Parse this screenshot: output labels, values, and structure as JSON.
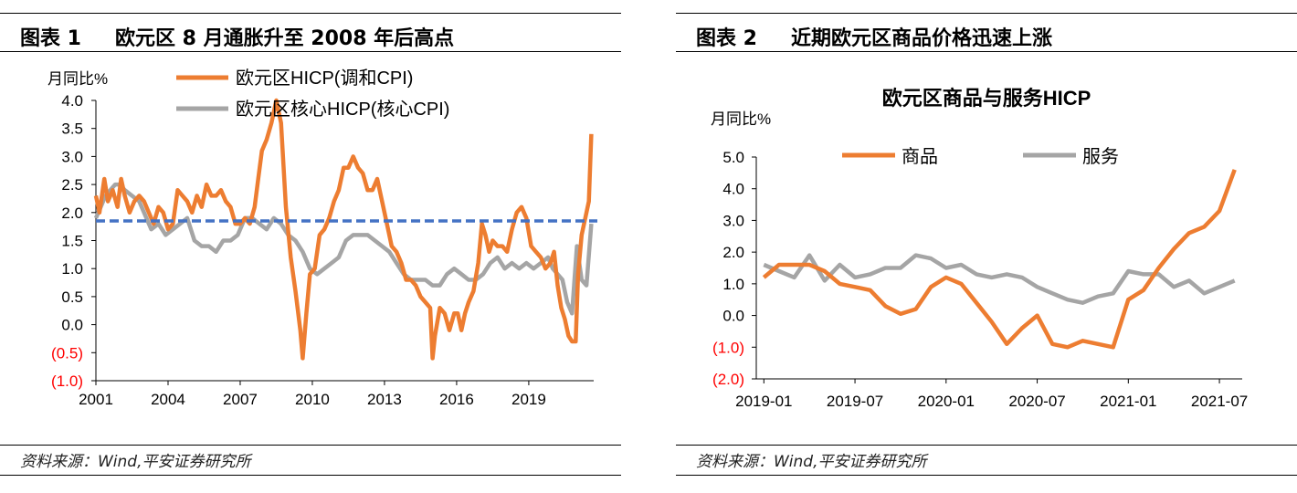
{
  "panels": [
    {
      "fig_num": "图表 1",
      "heading": "欧元区 8 月通胀升至 2008 年后高点",
      "source": "资料来源：Wind,平安证券研究所"
    },
    {
      "fig_num": "图表 2",
      "heading": "近期欧元区商品价格迅速上涨",
      "source": "资料来源：Wind,平安证券研究所"
    }
  ],
  "colors": {
    "orange": "#ED7D31",
    "gray": "#A5A5A5",
    "blue_dash": "#4472C4",
    "negative_label": "#FF0000"
  },
  "chart_data": [
    {
      "type": "line",
      "ylabel": "月同比%",
      "ylim": [
        -1.0,
        4.0
      ],
      "yticks": [
        4.0,
        3.5,
        3.0,
        2.5,
        2.0,
        1.5,
        1.0,
        0.5,
        0.0,
        -0.5,
        -1.0
      ],
      "ytick_labels": [
        "4.0",
        "3.5",
        "3.0",
        "2.5",
        "2.0",
        "1.5",
        "1.0",
        "0.5",
        "0.0",
        "(0.5)",
        "(1.0)"
      ],
      "xlim": [
        2001.0,
        2021.7
      ],
      "xticks": [
        2001,
        2004,
        2007,
        2010,
        2013,
        2016,
        2019
      ],
      "xtick_labels": [
        "2001",
        "2004",
        "2007",
        "2010",
        "2013",
        "2016",
        "2019"
      ],
      "reference_line": 1.85,
      "legend_position": "top",
      "series": [
        {
          "name": "欧元区HICP(调和CPI)",
          "color": "orange",
          "x": [
            2001.0,
            2001.15,
            2001.35,
            2001.5,
            2001.7,
            2001.9,
            2002.05,
            2002.2,
            2002.4,
            2002.6,
            2002.8,
            2003.0,
            2003.2,
            2003.4,
            2003.6,
            2003.8,
            2004.0,
            2004.2,
            2004.4,
            2004.6,
            2004.8,
            2005.0,
            2005.2,
            2005.4,
            2005.6,
            2005.8,
            2006.0,
            2006.2,
            2006.4,
            2006.6,
            2006.8,
            2007.0,
            2007.2,
            2007.4,
            2007.6,
            2007.75,
            2007.9,
            2008.1,
            2008.3,
            2008.5,
            2008.7,
            2008.9,
            2009.1,
            2009.3,
            2009.5,
            2009.6,
            2009.75,
            2009.9,
            2010.1,
            2010.3,
            2010.5,
            2010.7,
            2010.9,
            2011.1,
            2011.3,
            2011.5,
            2011.7,
            2011.9,
            2012.1,
            2012.3,
            2012.5,
            2012.7,
            2012.9,
            2013.1,
            2013.3,
            2013.5,
            2013.7,
            2013.9,
            2014.1,
            2014.3,
            2014.5,
            2014.7,
            2014.9,
            2015.0,
            2015.1,
            2015.3,
            2015.5,
            2015.7,
            2015.9,
            2016.05,
            2016.2,
            2016.35,
            2016.5,
            2016.7,
            2016.9,
            2017.05,
            2017.2,
            2017.35,
            2017.5,
            2017.7,
            2017.9,
            2018.1,
            2018.3,
            2018.5,
            2018.7,
            2018.9,
            2019.1,
            2019.3,
            2019.5,
            2019.7,
            2019.9,
            2020.05,
            2020.2,
            2020.35,
            2020.5,
            2020.65,
            2020.8,
            2020.95,
            2021.05,
            2021.2,
            2021.35,
            2021.5,
            2021.6
          ],
          "y": [
            2.3,
            2.0,
            2.6,
            2.2,
            2.4,
            2.1,
            2.6,
            2.3,
            2.0,
            2.2,
            2.3,
            2.2,
            2.0,
            1.8,
            2.1,
            2.0,
            1.7,
            1.8,
            2.4,
            2.3,
            2.2,
            2.0,
            2.3,
            2.1,
            2.5,
            2.3,
            2.3,
            2.4,
            2.2,
            2.1,
            1.8,
            1.8,
            1.9,
            1.8,
            2.1,
            2.6,
            3.1,
            3.3,
            3.6,
            4.0,
            3.6,
            2.1,
            1.2,
            0.6,
            -0.1,
            -0.6,
            0.2,
            0.9,
            1.0,
            1.6,
            1.7,
            1.9,
            2.2,
            2.4,
            2.8,
            2.8,
            3.0,
            2.8,
            2.7,
            2.4,
            2.4,
            2.6,
            2.2,
            1.8,
            1.4,
            1.3,
            1.1,
            0.8,
            0.8,
            0.7,
            0.5,
            0.4,
            0.3,
            -0.6,
            -0.2,
            0.3,
            0.2,
            -0.1,
            0.2,
            0.2,
            -0.1,
            0.2,
            0.4,
            0.6,
            1.1,
            1.8,
            1.6,
            1.3,
            1.5,
            1.4,
            1.4,
            1.3,
            1.7,
            2.0,
            2.1,
            1.9,
            1.4,
            1.3,
            1.2,
            1.0,
            1.1,
            1.3,
            0.7,
            0.3,
            0.1,
            -0.2,
            -0.3,
            -0.3,
            0.9,
            1.6,
            1.9,
            2.2,
            3.4
          ]
        },
        {
          "name": "欧元区核心HICP(核心CPI)",
          "color": "gray",
          "x": [
            2001.0,
            2001.2,
            2001.4,
            2001.6,
            2001.8,
            2002.0,
            2002.2,
            2002.5,
            2002.8,
            2003.0,
            2003.3,
            2003.6,
            2003.9,
            2004.2,
            2004.5,
            2004.8,
            2005.1,
            2005.4,
            2005.7,
            2006.0,
            2006.3,
            2006.6,
            2006.9,
            2007.2,
            2007.5,
            2007.8,
            2008.1,
            2008.4,
            2008.7,
            2009.0,
            2009.3,
            2009.6,
            2009.9,
            2010.2,
            2010.5,
            2010.8,
            2011.1,
            2011.4,
            2011.7,
            2012.0,
            2012.3,
            2012.6,
            2012.9,
            2013.2,
            2013.5,
            2013.8,
            2014.1,
            2014.4,
            2014.7,
            2015.0,
            2015.3,
            2015.6,
            2015.9,
            2016.2,
            2016.5,
            2016.8,
            2017.1,
            2017.4,
            2017.7,
            2018.0,
            2018.3,
            2018.6,
            2018.9,
            2019.2,
            2019.5,
            2019.8,
            2020.0,
            2020.2,
            2020.4,
            2020.6,
            2020.8,
            2021.0,
            2021.2,
            2021.4,
            2021.6
          ],
          "y": [
            1.9,
            2.1,
            2.3,
            2.4,
            2.5,
            2.5,
            2.4,
            2.3,
            2.2,
            2.0,
            1.7,
            1.8,
            1.6,
            1.7,
            1.8,
            1.9,
            1.5,
            1.4,
            1.4,
            1.3,
            1.5,
            1.5,
            1.6,
            1.9,
            1.9,
            1.8,
            1.7,
            1.9,
            1.8,
            1.6,
            1.5,
            1.3,
            1.0,
            0.9,
            1.0,
            1.1,
            1.2,
            1.5,
            1.6,
            1.6,
            1.6,
            1.5,
            1.4,
            1.3,
            1.1,
            0.9,
            0.8,
            0.8,
            0.8,
            0.7,
            0.7,
            0.9,
            1.0,
            0.9,
            0.8,
            0.8,
            0.9,
            1.1,
            1.2,
            1.0,
            1.1,
            1.0,
            1.1,
            1.0,
            1.1,
            1.2,
            1.0,
            0.9,
            0.8,
            0.4,
            0.2,
            1.4,
            0.8,
            0.7,
            1.8
          ]
        }
      ]
    },
    {
      "type": "line",
      "title": "欧元区商品与服务HICP",
      "ylabel": "月同比%",
      "ylim": [
        -2.0,
        5.0
      ],
      "yticks": [
        5.0,
        4.0,
        3.0,
        2.0,
        1.0,
        0.0,
        -1.0,
        -2.0
      ],
      "ytick_labels": [
        "5.0",
        "4.0",
        "3.0",
        "2.0",
        "1.0",
        "0.0",
        "(1.0)",
        "(2.0)"
      ],
      "categories": [
        "2019-01",
        "2019-02",
        "2019-03",
        "2019-04",
        "2019-05",
        "2019-06",
        "2019-07",
        "2019-08",
        "2019-09",
        "2019-10",
        "2019-11",
        "2019-12",
        "2020-01",
        "2020-02",
        "2020-03",
        "2020-04",
        "2020-05",
        "2020-06",
        "2020-07",
        "2020-08",
        "2020-09",
        "2020-10",
        "2020-11",
        "2020-12",
        "2021-01",
        "2021-02",
        "2021-03",
        "2021-04",
        "2021-05",
        "2021-06",
        "2021-07",
        "2021-08"
      ],
      "xtick_labels": [
        "2019-01",
        "2019-07",
        "2020-01",
        "2020-07",
        "2021-01",
        "2021-07"
      ],
      "legend_position": "top",
      "series": [
        {
          "name": "商品",
          "color": "orange",
          "values": [
            1.2,
            1.6,
            1.6,
            1.6,
            1.4,
            1.0,
            0.9,
            0.8,
            0.3,
            0.05,
            0.2,
            0.9,
            1.2,
            1.0,
            0.4,
            -0.2,
            -0.9,
            -0.4,
            0.0,
            -0.9,
            -1.0,
            -0.8,
            -0.9,
            -1.0,
            0.5,
            0.8,
            1.5,
            2.1,
            2.6,
            2.8,
            3.3,
            4.6
          ]
        },
        {
          "name": "服务",
          "color": "gray",
          "values": [
            1.6,
            1.4,
            1.2,
            1.9,
            1.1,
            1.6,
            1.2,
            1.3,
            1.5,
            1.5,
            1.9,
            1.8,
            1.5,
            1.6,
            1.3,
            1.2,
            1.3,
            1.2,
            0.9,
            0.7,
            0.5,
            0.4,
            0.6,
            0.7,
            1.4,
            1.3,
            1.3,
            0.9,
            1.1,
            0.7,
            0.9,
            1.1
          ]
        }
      ]
    }
  ]
}
